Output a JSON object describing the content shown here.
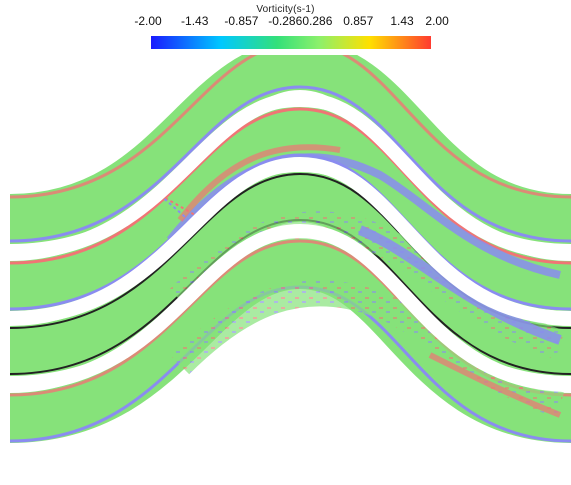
{
  "colorbar": {
    "title": "Vorticity(s-1)",
    "ticks": [
      "-2.00",
      "-1.43",
      "-0.857",
      "-0.286",
      "0.286",
      "0.857",
      "1.43",
      "2.00"
    ],
    "min": -2.0,
    "max": 2.0,
    "colors": [
      "#1a1aff",
      "#00c8ff",
      "#33e07a",
      "#8cf06b",
      "#ffe000",
      "#ff3b30"
    ]
  },
  "channels": {
    "count": 4,
    "field_color": "#86e27a",
    "positive_color": "#f07575",
    "negative_color": "#8a8cf0",
    "wall_color": "#222222"
  }
}
